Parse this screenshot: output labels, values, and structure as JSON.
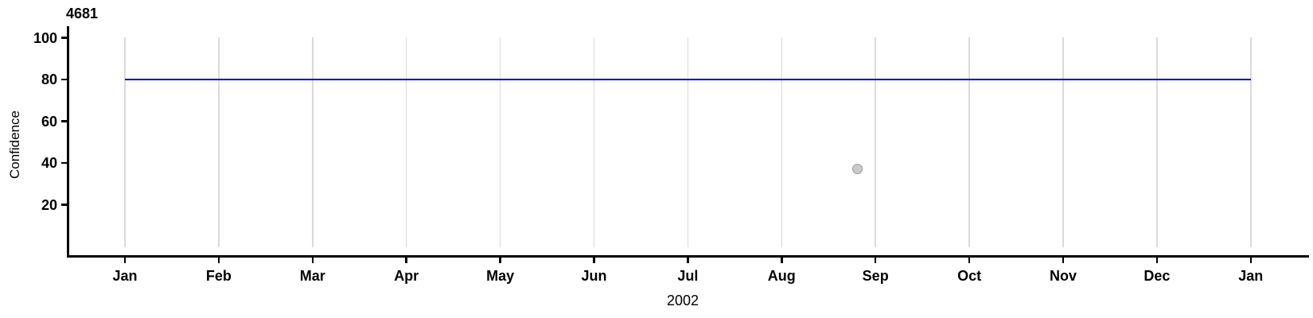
{
  "chart_data": {
    "type": "line",
    "title": "4681",
    "xlabel": "2002",
    "ylabel": "Confidence",
    "x_tick_labels": [
      "Jan",
      "Feb",
      "Mar",
      "Apr",
      "May",
      "Jun",
      "Jul",
      "Aug",
      "Sep",
      "Oct",
      "Nov",
      "Dec",
      "Jan"
    ],
    "x_range_months": [
      0,
      12
    ],
    "y_ticks": [
      100,
      80,
      60,
      40,
      20
    ],
    "ylim": [
      0,
      106
    ],
    "grid": {
      "vertical": true,
      "horizontal": false,
      "color": "#DADADA"
    },
    "axis_color": "#000000",
    "legend": "none",
    "series": [
      {
        "name": "confidence-threshold-line",
        "type": "hline",
        "y": 80,
        "x_start_month": 0,
        "x_end_month": 12,
        "color": "#0000CC"
      },
      {
        "name": "confidence-observation",
        "type": "scatter",
        "marker": "circle",
        "fill": "#CBCBCB",
        "stroke": "#9A9A9A",
        "points": [
          {
            "x_month": 7.81,
            "x_date_estimate": "2002-08-25",
            "y": 37
          }
        ]
      }
    ]
  }
}
